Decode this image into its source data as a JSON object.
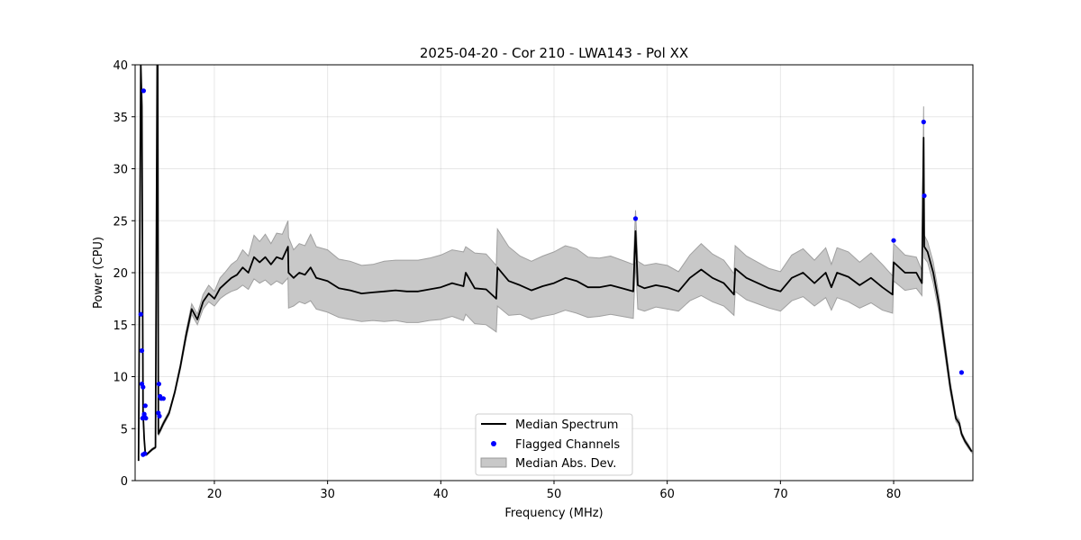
{
  "chart_data": {
    "type": "line",
    "title": "2025-04-20 - Cor 210 - LWA143 - Pol XX",
    "xlabel": "Frequency (MHz)",
    "ylabel": "Power (CPU)",
    "xlim": [
      13,
      87
    ],
    "ylim": [
      0,
      40
    ],
    "x_ticks": [
      20,
      30,
      40,
      50,
      60,
      70,
      80
    ],
    "y_ticks": [
      0,
      5,
      10,
      15,
      20,
      25,
      30,
      35,
      40
    ],
    "grid": true,
    "legend_position": "lower-center",
    "legend": [
      {
        "label": "Median Spectrum",
        "kind": "line",
        "color": "#000000"
      },
      {
        "label": "Flagged Channels",
        "kind": "marker",
        "color": "#0000ff"
      },
      {
        "label": "Median Abs. Dev.",
        "kind": "band",
        "color": "#c8c8c8"
      }
    ],
    "series": [
      {
        "name": "Median Spectrum",
        "color": "#000000",
        "x": [
          13.3,
          13.5,
          13.6,
          13.7,
          13.8,
          13.9,
          14.0,
          14.2,
          14.5,
          14.8,
          14.95,
          15.0,
          15.05,
          15.2,
          15.5,
          16.0,
          16.5,
          17.0,
          17.5,
          18.0,
          18.5,
          19.0,
          19.5,
          20.0,
          20.5,
          21.0,
          21.5,
          22.0,
          22.5,
          23.0,
          23.5,
          24.0,
          24.5,
          25.0,
          25.5,
          26.0,
          26.5,
          26.55,
          27.0,
          27.5,
          28.0,
          28.5,
          29.0,
          30.0,
          31.0,
          32.0,
          33.0,
          34.0,
          35.0,
          36.0,
          37.0,
          38.0,
          39.0,
          40.0,
          41.0,
          42.0,
          42.2,
          43.0,
          44.0,
          44.9,
          45.0,
          46.0,
          47.0,
          48.0,
          49.0,
          50.0,
          51.0,
          52.0,
          53.0,
          54.0,
          55.0,
          56.0,
          57.0,
          57.2,
          57.4,
          58.0,
          59.0,
          60.0,
          61.0,
          62.0,
          63.0,
          64.0,
          65.0,
          65.9,
          66.0,
          67.0,
          68.0,
          69.0,
          70.0,
          71.0,
          72.0,
          73.0,
          74.0,
          74.5,
          75.0,
          76.0,
          77.0,
          78.0,
          79.0,
          79.9,
          80.0,
          81.0,
          82.0,
          82.5,
          82.65,
          82.7,
          83.0,
          83.5,
          84.0,
          84.5,
          85.0,
          85.5,
          85.8,
          86.0,
          86.3,
          86.6,
          86.9
        ],
        "y": [
          1.9,
          40,
          36,
          6.5,
          4,
          2.6,
          2.5,
          2.7,
          3.0,
          3.2,
          40,
          40,
          4.5,
          4.8,
          5.5,
          6.5,
          8.5,
          11,
          14,
          16.5,
          15.5,
          17.2,
          18,
          17.5,
          18.5,
          19,
          19.5,
          19.8,
          20.5,
          20,
          21.5,
          21,
          21.5,
          20.8,
          21.5,
          21.3,
          22.5,
          20,
          19.5,
          20,
          19.8,
          20.5,
          19.5,
          19.2,
          18.5,
          18.3,
          18,
          18.1,
          18.2,
          18.3,
          18.2,
          18.2,
          18.4,
          18.6,
          19,
          18.7,
          20,
          18.5,
          18.4,
          17.5,
          20.5,
          19.2,
          18.8,
          18.3,
          18.7,
          19,
          19.5,
          19.2,
          18.6,
          18.6,
          18.8,
          18.5,
          18.2,
          24,
          18.8,
          18.5,
          18.8,
          18.6,
          18.2,
          19.5,
          20.3,
          19.5,
          19,
          17.9,
          20.4,
          19.5,
          19,
          18.5,
          18.2,
          19.5,
          20,
          19,
          20,
          18.6,
          20,
          19.6,
          18.8,
          19.5,
          18.6,
          17.9,
          21,
          20,
          20,
          19,
          33,
          22.5,
          22,
          20,
          17,
          13,
          9,
          6,
          5.5,
          4.5,
          3.8,
          3.3,
          2.8
        ],
        "mad_lower": [
          1.9,
          39,
          35,
          6,
          3.8,
          2.5,
          2.4,
          2.6,
          2.9,
          3.1,
          39,
          39,
          4.3,
          4.6,
          5.3,
          6.3,
          8.3,
          10.7,
          13.6,
          16,
          15,
          16.5,
          17.2,
          16.8,
          17.5,
          17.9,
          18.2,
          18.4,
          18.8,
          18.4,
          19.4,
          19,
          19.3,
          18.8,
          19.2,
          18.9,
          19.5,
          16.6,
          16.8,
          17.2,
          17,
          17.3,
          16.5,
          16.2,
          15.7,
          15.5,
          15.3,
          15.4,
          15.3,
          15.4,
          15.2,
          15.2,
          15.4,
          15.5,
          15.8,
          15.4,
          16,
          15.1,
          15,
          14.3,
          16.8,
          15.9,
          16,
          15.5,
          15.8,
          16,
          16.4,
          16.1,
          15.7,
          15.8,
          16,
          15.8,
          15.6,
          21,
          16.5,
          16.3,
          16.7,
          16.5,
          16.3,
          17.3,
          17.8,
          17.2,
          16.8,
          15.9,
          18.2,
          17.4,
          17,
          16.6,
          16.3,
          17.3,
          17.7,
          16.8,
          17.6,
          16.4,
          17.6,
          17.2,
          16.6,
          17.1,
          16.4,
          16.1,
          19.2,
          18.3,
          18.5,
          17.8,
          30,
          21.4,
          21,
          19,
          16.2,
          12.3,
          8.5,
          5.7,
          5.2,
          4.3,
          3.6,
          3.1,
          2.7
        ],
        "mad_upper": [
          1.9,
          40,
          37,
          7,
          4.2,
          2.7,
          2.6,
          2.8,
          3.1,
          3.3,
          40,
          40,
          4.7,
          5,
          5.7,
          6.7,
          8.7,
          11.3,
          14.4,
          17,
          16,
          17.9,
          18.8,
          18.2,
          19.5,
          20.1,
          20.8,
          21.2,
          22.2,
          21.6,
          23.6,
          23,
          23.7,
          22.8,
          23.8,
          23.7,
          25,
          23.4,
          22.2,
          22.8,
          22.6,
          23.7,
          22.5,
          22.2,
          21.3,
          21.1,
          20.7,
          20.8,
          21.1,
          21.2,
          21.2,
          21.2,
          21.4,
          21.7,
          22.2,
          22,
          22.5,
          21.9,
          21.8,
          20.7,
          24.2,
          22.5,
          21.6,
          21.1,
          21.6,
          22,
          22.6,
          22.3,
          21.5,
          21.4,
          21.6,
          21.2,
          20.8,
          26,
          21.1,
          20.7,
          20.9,
          20.7,
          20.1,
          21.7,
          22.8,
          21.8,
          21.2,
          19.9,
          22.6,
          21.6,
          21,
          20.4,
          20.1,
          21.7,
          22.3,
          21.2,
          22.4,
          20.8,
          22.4,
          22,
          21,
          21.9,
          20.8,
          19.7,
          22.8,
          21.7,
          21.5,
          20.2,
          36,
          23.6,
          23,
          21,
          17.8,
          13.7,
          9.5,
          6.3,
          5.8,
          4.7,
          4,
          3.5,
          2.9
        ]
      },
      {
        "name": "Flagged Channels",
        "color": "#0000ff",
        "x": [
          13.5,
          13.6,
          13.6,
          13.7,
          13.75,
          13.8,
          13.65,
          13.8,
          13.9,
          13.95,
          13.85,
          13.7,
          15.1,
          15.2,
          15.3,
          15.5,
          15.05,
          15.15,
          57.2,
          80.0,
          82.65,
          82.7,
          86.0
        ],
        "y": [
          16,
          12.5,
          9.3,
          9,
          37.5,
          6.2,
          6,
          6.4,
          7.2,
          6,
          2.6,
          2.5,
          9.3,
          8.1,
          7.9,
          7.9,
          6.5,
          6.2,
          25.2,
          23.1,
          34.5,
          27.4,
          10.4
        ]
      }
    ]
  }
}
